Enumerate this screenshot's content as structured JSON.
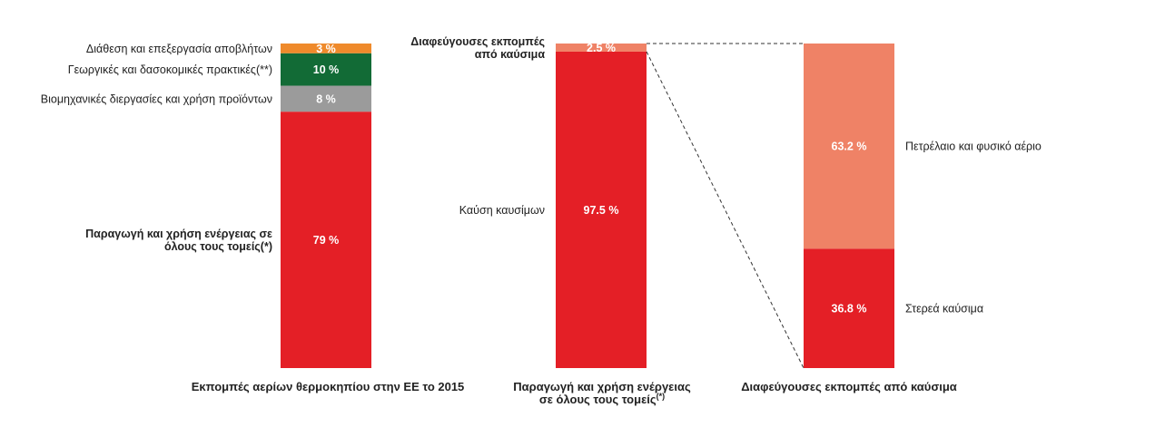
{
  "chart_data": [
    {
      "type": "bar",
      "stacked": true,
      "title": "Εκπομπές αερίων θερμοκηπίου στην ΕΕ το 2015",
      "ylim": [
        0,
        100
      ],
      "segments": [
        {
          "name_lines": [
            "Παραγωγή και χρήση ενέργειας σε",
            "όλους τους τομείς(*)"
          ],
          "value": 79,
          "value_label": "79 %",
          "color": "#e41f26"
        },
        {
          "name_lines": [
            "Βιομηχανικές διεργασίες και χρήση προϊόντων"
          ],
          "value": 8,
          "value_label": "8 %",
          "color": "#9b9b9b"
        },
        {
          "name_lines": [
            "Γεωργικές και δασοκομικές πρακτικές(**)"
          ],
          "value": 10,
          "value_label": "10 %",
          "color": "#126b36"
        },
        {
          "name_lines": [
            "Διάθεση και επεξεργασία αποβλήτων"
          ],
          "value": 3,
          "value_label": "3 %",
          "color": "#ef8a2b"
        }
      ]
    },
    {
      "type": "bar",
      "stacked": true,
      "title_lines": [
        "Παραγωγή και χρήση ενέργειας",
        "σε όλους τους τομείς"
      ],
      "title_sup": "(*)",
      "ylim": [
        0,
        100
      ],
      "segments": [
        {
          "name_lines": [
            "Καύση καυσίμων"
          ],
          "value": 97.5,
          "value_label": "97.5 %",
          "color": "#e41f26"
        },
        {
          "name_lines": [
            "Διαφεύγουσες εκπομπές",
            "από καύσιμα"
          ],
          "value": 2.5,
          "value_label": "2.5 %",
          "color": "#ef8266"
        }
      ]
    },
    {
      "type": "bar",
      "stacked": true,
      "title": "Διαφεύγουσες εκπομπές από καύσιμα",
      "ylim": [
        0,
        100
      ],
      "segments": [
        {
          "name_lines": [
            "Στερεά καύσιμα"
          ],
          "value": 36.8,
          "value_label": "36.8 %",
          "color": "#e41f26"
        },
        {
          "name_lines": [
            "Πετρέλαιο και φυσικό αέριο"
          ],
          "value": 63.2,
          "value_label": "63.2 %",
          "color": "#ef8266"
        }
      ]
    }
  ]
}
